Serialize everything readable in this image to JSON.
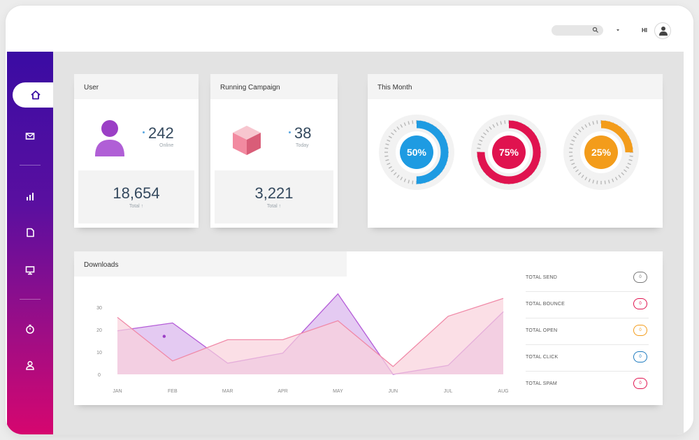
{
  "header": {
    "greeting": "HI",
    "icons": [
      "search-icon",
      "chevron-down-icon",
      "user-icon"
    ]
  },
  "sidebar": {
    "items": [
      {
        "name": "home",
        "icon": "home-icon",
        "active": true
      },
      {
        "name": "mail",
        "icon": "mail-icon"
      },
      {
        "name": "stats",
        "icon": "bar-chart-icon"
      },
      {
        "name": "documents",
        "icon": "document-icon"
      },
      {
        "name": "monitor",
        "icon": "monitor-icon"
      },
      {
        "name": "timer",
        "icon": "stopwatch-icon"
      },
      {
        "name": "profile",
        "icon": "user-icon"
      }
    ],
    "gradient": [
      "#3a0ca3",
      "#d6066f"
    ]
  },
  "user_card": {
    "title": "User",
    "online_value": "242",
    "online_label": "Online",
    "total_value": "18,654",
    "total_label": "Total ↑"
  },
  "campaign_card": {
    "title": "Running Campaign",
    "today_value": "38",
    "today_label": "Today",
    "total_value": "3,221",
    "total_label": "Total ↑"
  },
  "month_card": {
    "title": "This Month",
    "gauges": [
      {
        "label": "50%",
        "value": 0.5,
        "color": "#1e9be2"
      },
      {
        "label": "75%",
        "value": 0.75,
        "color": "#e0134f"
      },
      {
        "label": "25%",
        "value": 0.25,
        "color": "#f39c1b"
      }
    ]
  },
  "downloads": {
    "title": "Downloads",
    "legend": [
      {
        "label": "TOTAL SEND",
        "count": "0",
        "color": "#777777"
      },
      {
        "label": "TOTAL BOUNCE",
        "count": "0",
        "color": "#e0134f"
      },
      {
        "label": "TOTAL OPEN",
        "count": "0",
        "color": "#f39c1b"
      },
      {
        "label": "TOTAL CLICK",
        "count": "0",
        "color": "#1e7bbf"
      },
      {
        "label": "TOTAL SPAM",
        "count": "0",
        "color": "#e0134f"
      }
    ]
  },
  "chart_data": {
    "type": "area",
    "title": "Downloads",
    "categories": [
      "JAN",
      "FEB",
      "MAR",
      "APR",
      "MAY",
      "JUN",
      "JUL",
      "AUG"
    ],
    "ylim": [
      0,
      30
    ],
    "yticks": [
      "0",
      "10",
      "20",
      "30"
    ],
    "grid": false,
    "series": [
      {
        "values": [
          19.5,
          23,
          5,
          9.5,
          36,
          0,
          4,
          28
        ],
        "color": "#b45cd8",
        "fill": "#d9b4ec"
      },
      {
        "values": [
          25.5,
          6,
          15.5,
          15.5,
          24,
          3.5,
          26,
          34
        ],
        "color": "#f08aa8",
        "fill": "#fad2dc"
      }
    ],
    "marker": {
      "x": "FEB",
      "y": 17
    }
  }
}
